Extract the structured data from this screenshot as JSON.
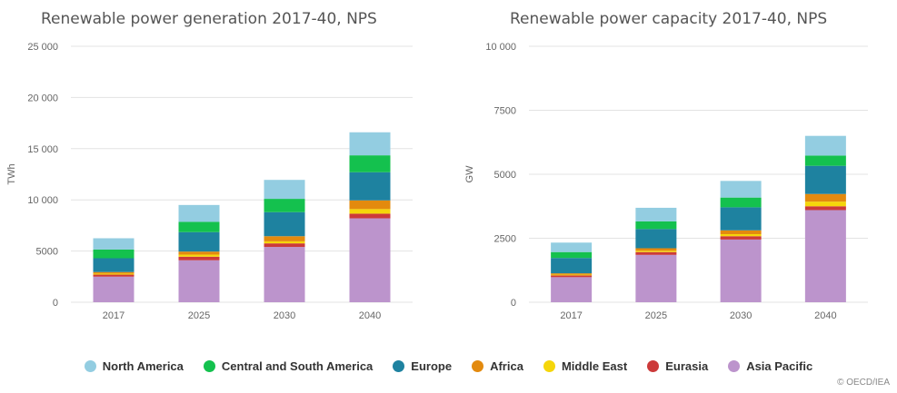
{
  "series_meta": [
    {
      "name": "North America",
      "color": "#93cde1"
    },
    {
      "name": "Central and South America",
      "color": "#14c14e"
    },
    {
      "name": "Europe",
      "color": "#1e82a0"
    },
    {
      "name": "Africa",
      "color": "#e38a0e"
    },
    {
      "name": "Middle East",
      "color": "#f5d60a"
    },
    {
      "name": "Eurasia",
      "color": "#cc3a3a"
    },
    {
      "name": "Asia Pacific",
      "color": "#bc94cc"
    }
  ],
  "credit": "© OECD/IEA",
  "chart_data": [
    {
      "type": "bar",
      "stacked": true,
      "title": "Renewable power generation 2017-40, NPS",
      "ylabel": "TWh",
      "xlabel": "",
      "ylim": [
        0,
        25000
      ],
      "yticks": [
        0,
        5000,
        10000,
        15000,
        20000,
        25000
      ],
      "ytick_labels": [
        "0",
        "5000",
        "10 000",
        "15 000",
        "20 000",
        "25 000"
      ],
      "categories": [
        "2017",
        "2025",
        "2030",
        "2040"
      ],
      "grid": true,
      "series": [
        {
          "name": "Asia Pacific",
          "values": [
            2500,
            4100,
            5400,
            8200
          ]
        },
        {
          "name": "Eurasia",
          "values": [
            200,
            350,
            350,
            450
          ]
        },
        {
          "name": "Middle East",
          "values": [
            100,
            200,
            200,
            450
          ]
        },
        {
          "name": "Africa",
          "values": [
            150,
            300,
            500,
            850
          ]
        },
        {
          "name": "Europe",
          "values": [
            1350,
            1900,
            2350,
            2750
          ]
        },
        {
          "name": "Central and South America",
          "values": [
            850,
            1000,
            1300,
            1650
          ]
        },
        {
          "name": "North America",
          "values": [
            1100,
            1650,
            1850,
            2250
          ]
        }
      ]
    },
    {
      "type": "bar",
      "stacked": true,
      "title": "Renewable power capacity 2017-40, NPS",
      "ylabel": "GW",
      "xlabel": "",
      "ylim": [
        0,
        10000
      ],
      "yticks": [
        0,
        2500,
        5000,
        7500,
        10000
      ],
      "ytick_labels": [
        "0",
        "2500",
        "5000",
        "7500",
        "10 000"
      ],
      "categories": [
        "2017",
        "2025",
        "2030",
        "2040"
      ],
      "grid": true,
      "series": [
        {
          "name": "Asia Pacific",
          "values": [
            980,
            1850,
            2450,
            3600
          ]
        },
        {
          "name": "Eurasia",
          "values": [
            70,
            110,
            130,
            150
          ]
        },
        {
          "name": "Middle East",
          "values": [
            30,
            50,
            80,
            180
          ]
        },
        {
          "name": "Africa",
          "values": [
            50,
            100,
            150,
            300
          ]
        },
        {
          "name": "Europe",
          "values": [
            600,
            750,
            900,
            1100
          ]
        },
        {
          "name": "Central and South America",
          "values": [
            230,
            300,
            380,
            400
          ]
        },
        {
          "name": "North America",
          "values": [
            370,
            530,
            650,
            770
          ]
        }
      ]
    }
  ]
}
